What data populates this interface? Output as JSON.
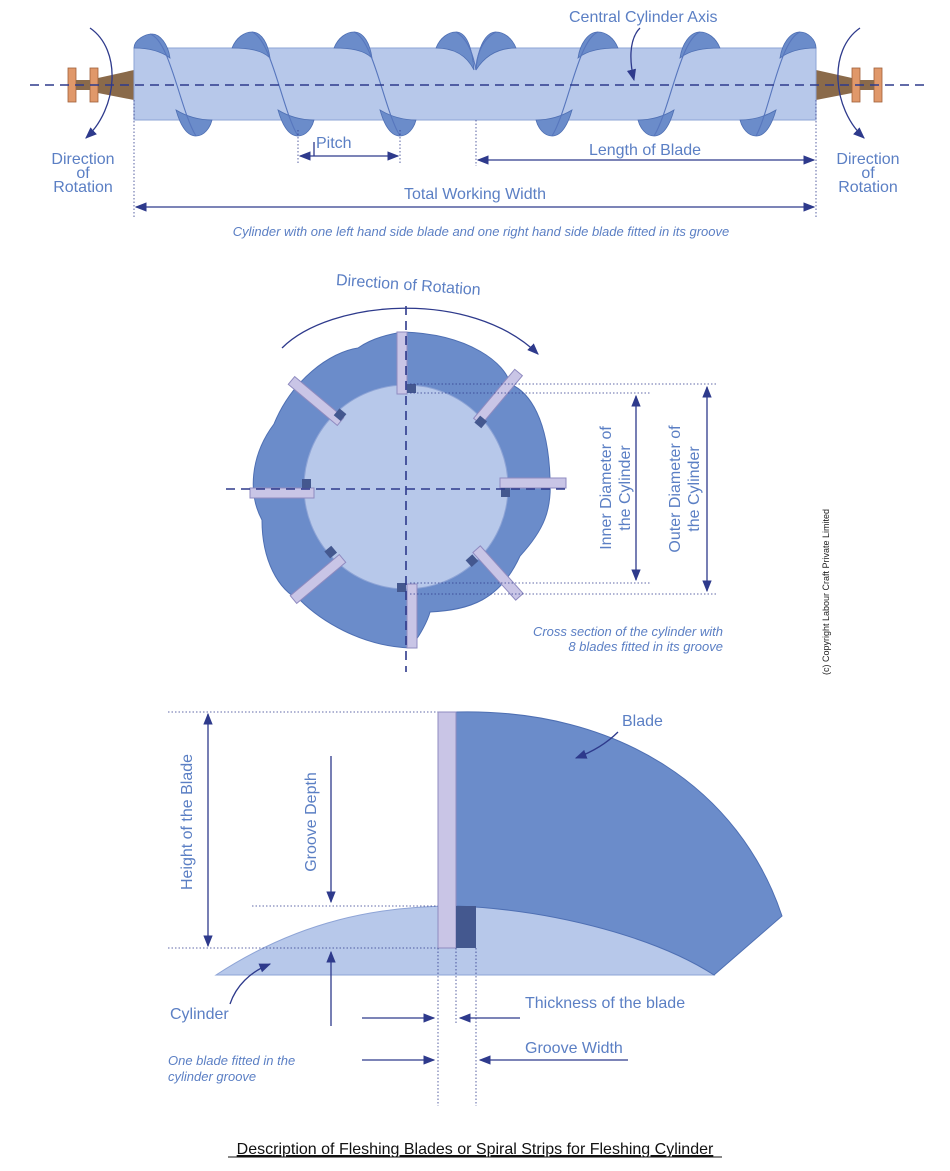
{
  "top_diagram": {
    "axis_label": "Central Cylinder Axis",
    "rotation_left": [
      "Direction",
      "of",
      "Rotation"
    ],
    "rotation_right": [
      "Direction",
      "of",
      "Rotation"
    ],
    "pitch_label": "Pitch",
    "length_label": "Length of Blade",
    "total_label": "Total Working Width",
    "caption": "Cylinder with one left hand side blade and one right hand side blade fitted in its groove"
  },
  "cross_section": {
    "rotation_label": "Direction of Rotation",
    "inner_label": [
      "Inner Diameter of",
      "the Cylinder"
    ],
    "outer_label": [
      "Outer Diameter of",
      "the Cylinder"
    ],
    "caption": [
      "Cross section of the cylinder with",
      "8 blades fitted in its groove"
    ]
  },
  "detail": {
    "blade_label": "Blade",
    "height_label": "Height of the Blade",
    "groove_depth_label": "Groove Depth",
    "cylinder_label": "Cylinder",
    "thickness_label": "Thickness of the blade",
    "groove_width_label": "Groove Width",
    "note": [
      "One blade fitted in the",
      "cylinder groove"
    ]
  },
  "copyright": "(c) Copyright Labour Craft Private Limited",
  "title": "Description of Fleshing Blades or Spiral Strips for Fleshing Cylinder",
  "colors": {
    "cylinder": "#b7c8ea",
    "blade": "#6b8cca",
    "blade_edge": "#c9c5e6",
    "groove": "#44588f",
    "line": "#2e3a8c",
    "text": "#5b7fc4",
    "shaft": "#8a6a4a",
    "collar": "#e0986a"
  }
}
